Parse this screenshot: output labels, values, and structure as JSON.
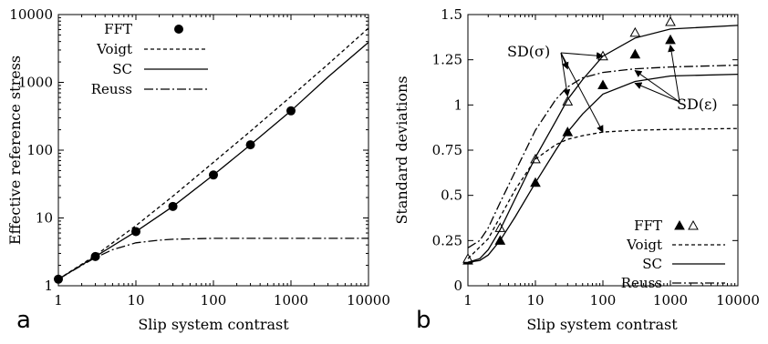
{
  "chart_data": [
    {
      "type": "line",
      "panel_label": "a",
      "xlabel": "Slip system contrast",
      "ylabel": "Effective reference stress",
      "xscale": "log",
      "yscale": "log",
      "xlim": [
        1,
        10000
      ],
      "ylim": [
        1,
        10000
      ],
      "x_ticks": [
        1,
        10,
        100,
        1000,
        10000
      ],
      "x_tick_labels": [
        "1",
        "10",
        "100",
        "1000",
        "10000"
      ],
      "y_ticks": [
        1,
        10,
        100,
        1000,
        10000
      ],
      "y_tick_labels": [
        "1",
        "10",
        "100",
        "1000",
        "10000"
      ],
      "legend_position": "top-left",
      "series": [
        {
          "name": "FFT",
          "kind": "points",
          "marker": "filled-circle",
          "x": [
            1,
            3,
            10,
            30,
            100,
            300,
            1000
          ],
          "y": [
            1.25,
            2.7,
            6.3,
            14.8,
            43,
            120,
            380
          ]
        },
        {
          "name": "Voigt",
          "kind": "line",
          "style": "dashed",
          "x": [
            1,
            3,
            10,
            30,
            100,
            300,
            1000,
            3000,
            10000
          ],
          "y": [
            1.25,
            2.8,
            7.7,
            21,
            66,
            190,
            620,
            1850,
            6300
          ]
        },
        {
          "name": "SC",
          "kind": "line",
          "style": "solid",
          "x": [
            1,
            3,
            10,
            30,
            100,
            300,
            1000,
            3000,
            10000
          ],
          "y": [
            1.25,
            2.7,
            6.3,
            14.8,
            43,
            120,
            380,
            1200,
            3900
          ]
        },
        {
          "name": "Reuss",
          "kind": "line",
          "style": "dash-dot",
          "x": [
            1,
            2,
            3,
            5,
            10,
            20,
            30,
            100,
            300,
            1000,
            10000
          ],
          "y": [
            1.25,
            2.0,
            2.6,
            3.4,
            4.3,
            4.7,
            4.85,
            5.0,
            5.0,
            5.0,
            5.0
          ]
        }
      ]
    },
    {
      "type": "line",
      "panel_label": "b",
      "xlabel": "Slip system contrast",
      "ylabel": "Standard deviations",
      "xscale": "log",
      "yscale": "linear",
      "xlim": [
        1,
        10000
      ],
      "ylim": [
        0,
        1.5
      ],
      "x_ticks": [
        1,
        10,
        100,
        1000,
        10000
      ],
      "x_tick_labels": [
        "1",
        "10",
        "100",
        "1000",
        "10000"
      ],
      "y_ticks": [
        0,
        0.25,
        0.5,
        0.75,
        1,
        1.25,
        1.5
      ],
      "y_tick_labels": [
        "0",
        "0.25",
        "0.5",
        "0.75",
        "1",
        "1.25",
        "1.5"
      ],
      "legend_position": "bottom-right",
      "annotations": [
        "SD(σ)",
        "SD(ε)"
      ],
      "series": [
        {
          "name": "FFT",
          "kind": "points",
          "marker": "filled-triangle",
          "quantity": "SD(ε)",
          "x": [
            1,
            3,
            10,
            30,
            100,
            300,
            1000
          ],
          "y": [
            0.14,
            0.25,
            0.57,
            0.85,
            1.11,
            1.28,
            1.36
          ]
        },
        {
          "name": "FFT",
          "kind": "points",
          "marker": "open-triangle",
          "quantity": "SD(σ)",
          "x": [
            1,
            3,
            10,
            30,
            100,
            300,
            1000
          ],
          "y": [
            0.15,
            0.32,
            0.7,
            1.02,
            1.27,
            1.4,
            1.46
          ]
        },
        {
          "name": "Voigt",
          "kind": "line",
          "style": "dashed",
          "quantity": "SD(σ)",
          "x": [
            1,
            2,
            3,
            5,
            10,
            20,
            30,
            50,
            100,
            300,
            1000,
            10000
          ],
          "y": [
            0.15,
            0.26,
            0.38,
            0.53,
            0.7,
            0.78,
            0.81,
            0.83,
            0.85,
            0.86,
            0.865,
            0.87
          ]
        },
        {
          "name": "SC",
          "kind": "line",
          "style": "solid",
          "quantity": "SD(σ)",
          "x": [
            1,
            1.5,
            2,
            3,
            5,
            10,
            20,
            30,
            50,
            100,
            300,
            1000,
            10000
          ],
          "y": [
            0.13,
            0.15,
            0.2,
            0.31,
            0.48,
            0.71,
            0.91,
            1.03,
            1.14,
            1.27,
            1.37,
            1.42,
            1.44
          ]
        },
        {
          "name": "SC",
          "kind": "line",
          "style": "solid",
          "quantity": "SD(ε)",
          "x": [
            1,
            1.5,
            2,
            3,
            5,
            10,
            20,
            30,
            50,
            100,
            300,
            1000,
            10000
          ],
          "y": [
            0.13,
            0.14,
            0.17,
            0.25,
            0.38,
            0.57,
            0.75,
            0.85,
            0.95,
            1.06,
            1.13,
            1.16,
            1.17
          ]
        },
        {
          "name": "Reuss",
          "kind": "line",
          "style": "dash-dot",
          "quantity": "SD(ε)",
          "x": [
            1,
            1.5,
            2,
            3,
            5,
            10,
            20,
            30,
            50,
            100,
            300,
            1000,
            10000
          ],
          "y": [
            0.21,
            0.25,
            0.32,
            0.46,
            0.63,
            0.86,
            1.03,
            1.1,
            1.15,
            1.18,
            1.2,
            1.21,
            1.22
          ]
        }
      ]
    }
  ]
}
